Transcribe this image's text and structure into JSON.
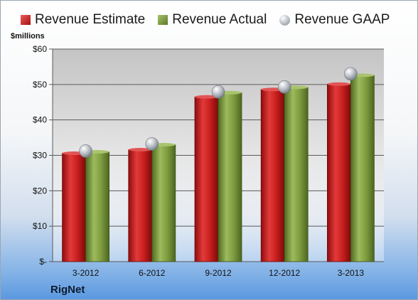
{
  "legend": {
    "estimate": "Revenue Estimate",
    "actual": "Revenue Actual",
    "gaap": "Revenue GAAP"
  },
  "unit_label": "$millions",
  "company": "RigNet",
  "colors": {
    "estimate": "#c62020",
    "actual": "#86a34a",
    "gaap": "#b8bdc4"
  },
  "chart_data": {
    "type": "bar",
    "categories": [
      "3-2012",
      "6-2012",
      "9-2012",
      "12-2012",
      "3-2013"
    ],
    "series": [
      {
        "name": "Revenue Estimate",
        "values": [
          30.6,
          31.6,
          46.5,
          48.6,
          50.1
        ]
      },
      {
        "name": "Revenue Actual",
        "values": [
          31.0,
          33.0,
          47.7,
          49.2,
          52.6
        ]
      },
      {
        "name": "Revenue GAAP",
        "values": [
          31.2,
          33.2,
          47.9,
          49.3,
          53.0
        ]
      }
    ],
    "ylabel": "$millions",
    "ylim": [
      0,
      60
    ],
    "yticks": [
      0,
      10,
      20,
      30,
      40,
      50,
      60
    ],
    "ytick_labels": [
      "$-",
      "$10",
      "$20",
      "$30",
      "$40",
      "$50",
      "$60"
    ],
    "grid": true,
    "legend_position": "top"
  }
}
